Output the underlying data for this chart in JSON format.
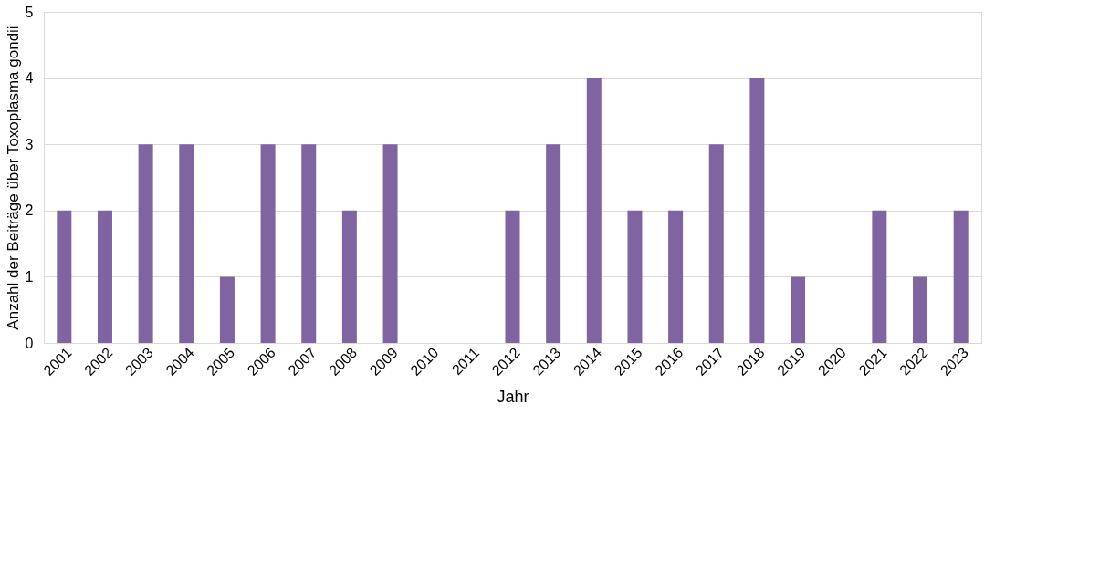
{
  "chart_data": {
    "type": "bar",
    "xlabel": "Jahr",
    "ylabel": "Anzahl der Beiträge über Toxoplasma gondii",
    "categories": [
      "2001",
      "2002",
      "2003",
      "2004",
      "2005",
      "2006",
      "2007",
      "2008",
      "2009",
      "2010",
      "2011",
      "2012",
      "2013",
      "2014",
      "2015",
      "2016",
      "2017",
      "2018",
      "2019",
      "2020",
      "2021",
      "2022",
      "2023"
    ],
    "values": [
      2,
      2,
      3,
      3,
      1,
      3,
      3,
      2,
      3,
      0,
      0,
      2,
      3,
      4,
      2,
      2,
      3,
      4,
      1,
      0,
      2,
      1,
      2
    ],
    "color": "#8064a2",
    "ylim": [
      0,
      5
    ],
    "yticks": [
      0,
      1,
      2,
      3,
      4,
      5
    ],
    "grid": "y"
  }
}
